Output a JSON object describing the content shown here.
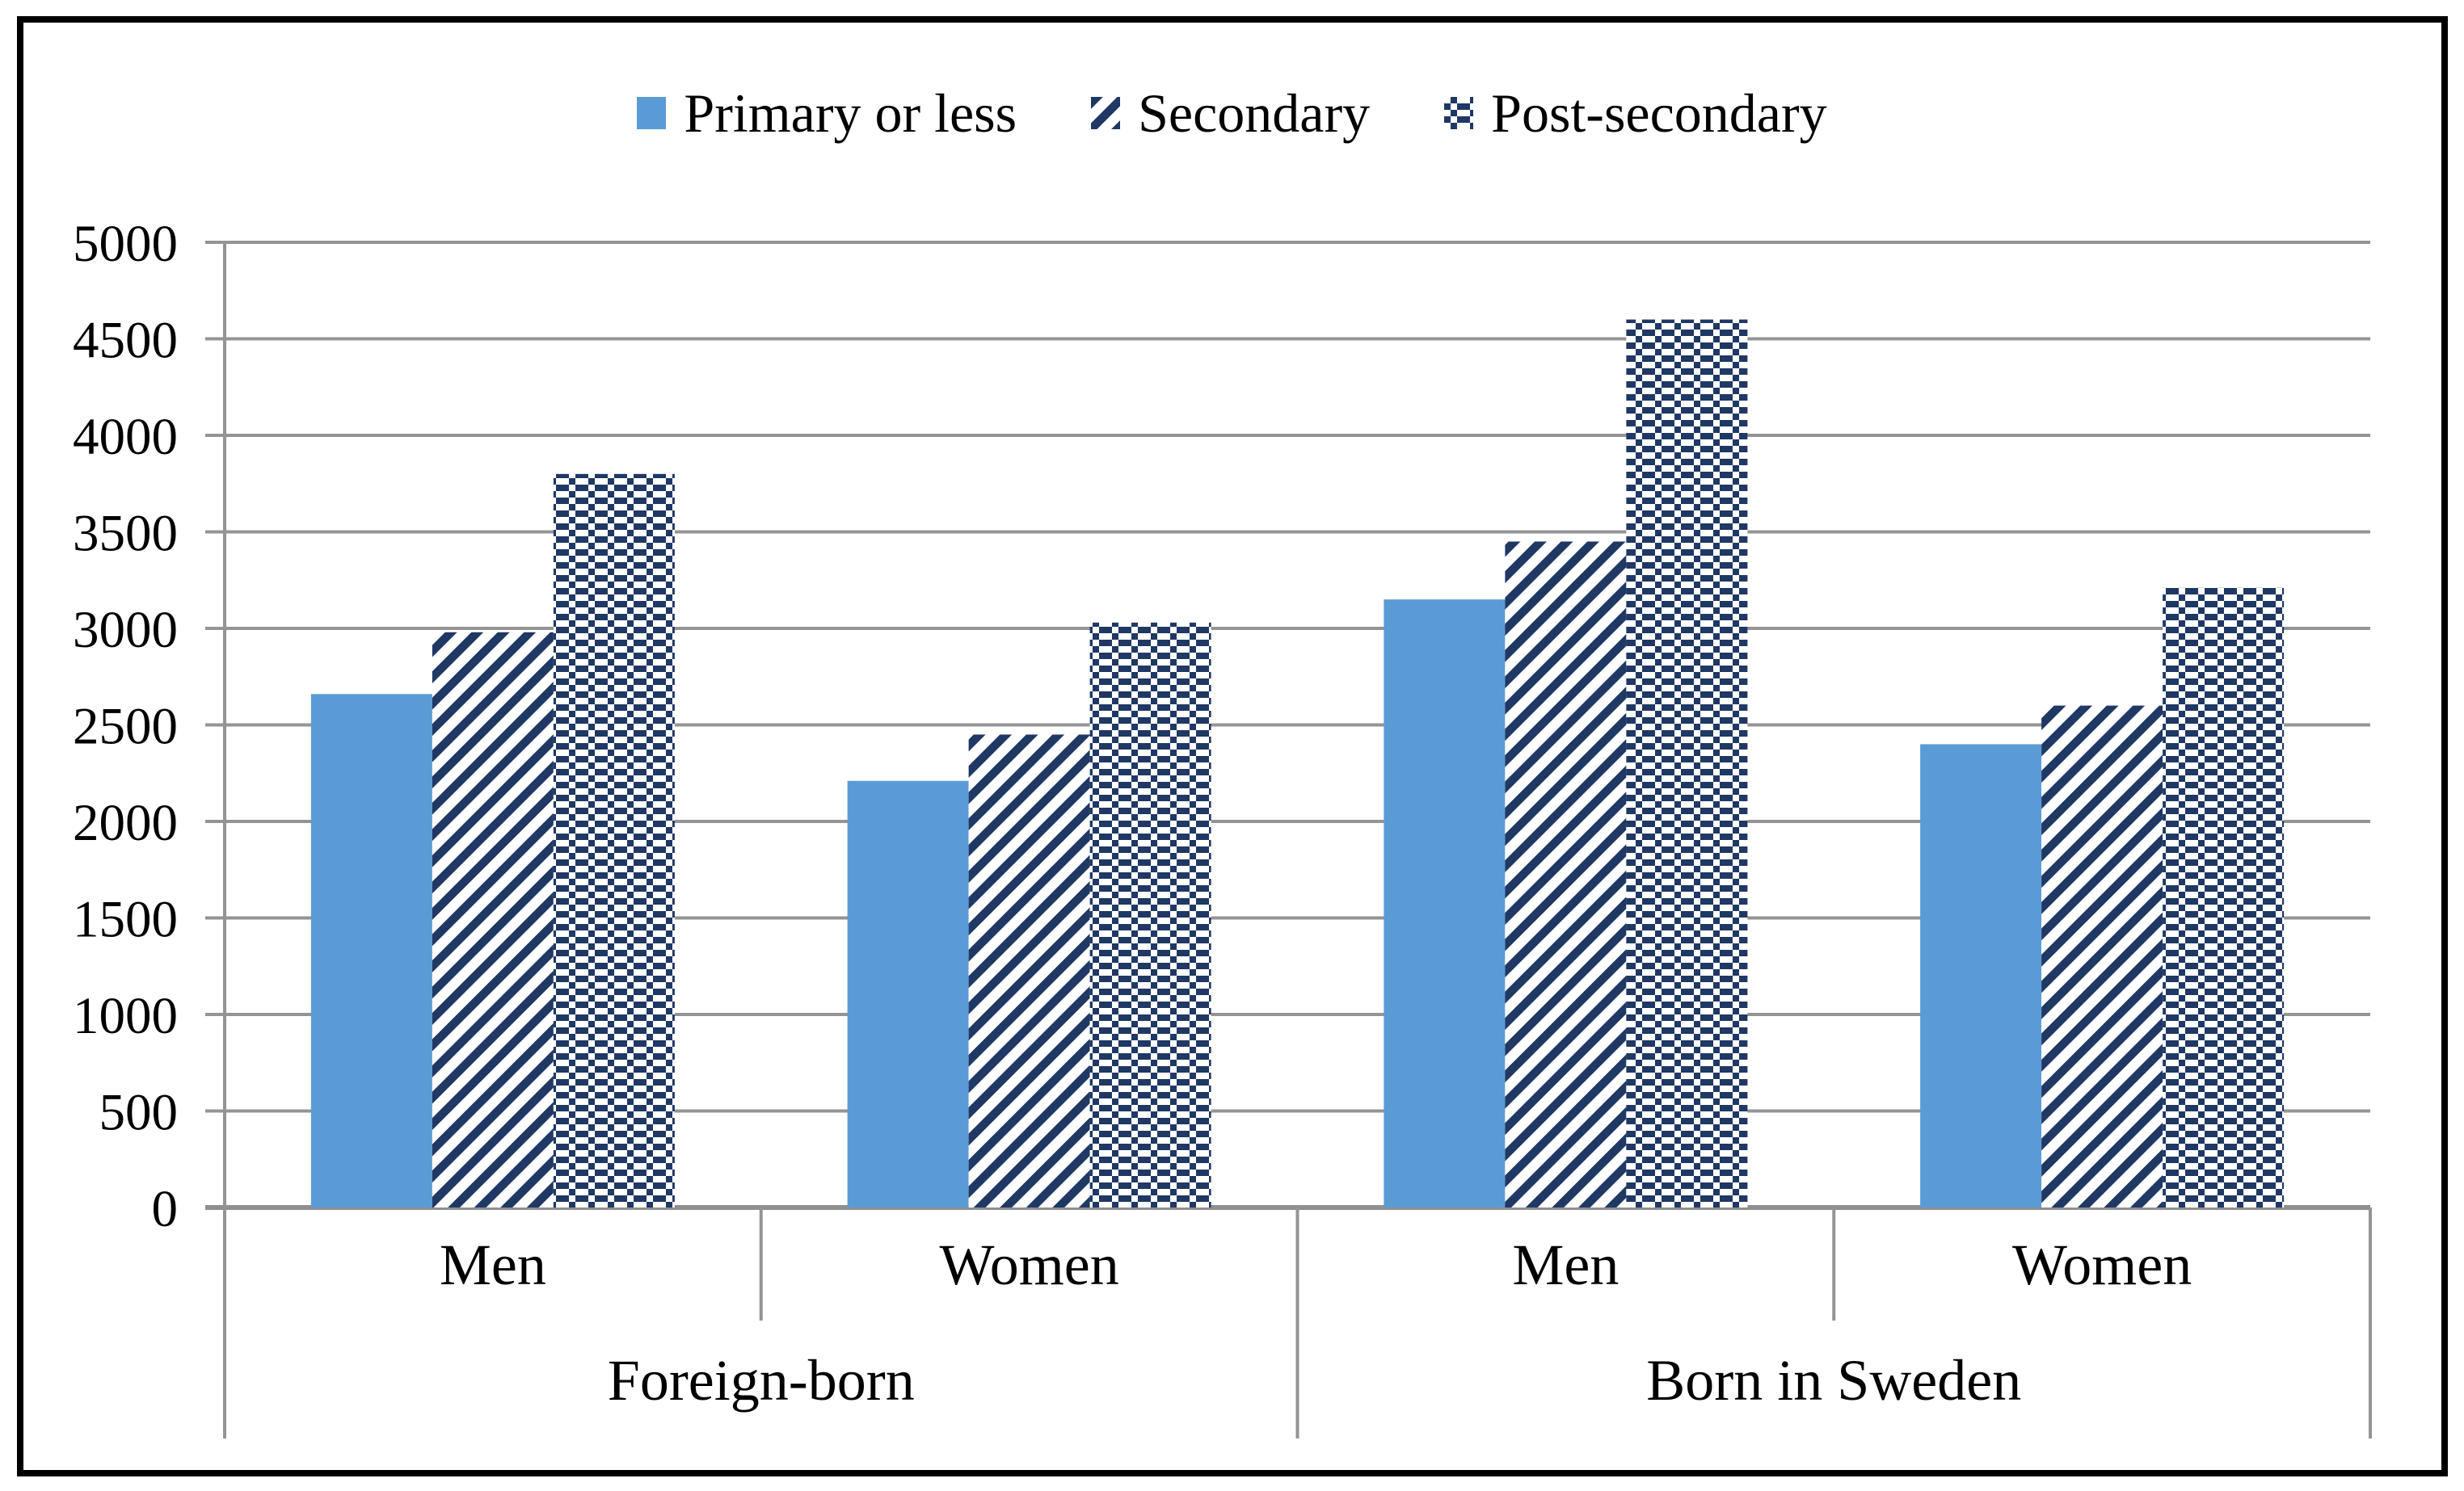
{
  "figure": {
    "background": "#FFFFFF",
    "border_color": "#000000"
  },
  "legend": {
    "position": "top-center",
    "items": [
      {
        "swatch": "solid-square",
        "series_index": 0
      },
      {
        "swatch": "diagonal-stripes-square",
        "series_index": 1
      },
      {
        "swatch": "dotted-lattice-square",
        "series_index": 2
      }
    ]
  },
  "chart_data": {
    "type": "bar",
    "title": "",
    "xlabel": "",
    "ylabel": "",
    "groups": [
      {
        "label": "Foreign-born",
        "categories": [
          "Men",
          "Women"
        ]
      },
      {
        "label": "Born in Sweden",
        "categories": [
          "Men",
          "Women"
        ]
      }
    ],
    "category_order": [
      "Foreign-born / Men",
      "Foreign-born / Women",
      "Born in Sweden / Men",
      "Born in Sweden / Women"
    ],
    "series": [
      {
        "name": "Primary or less",
        "pattern": "solid",
        "values": [
          2660,
          2210,
          3150,
          2400
        ]
      },
      {
        "name": "Secondary",
        "pattern": "diagonal-stripes",
        "values": [
          2980,
          2450,
          3450,
          2600
        ]
      },
      {
        "name": "Post-secondary",
        "pattern": "dotted-lattice",
        "values": [
          3800,
          3030,
          4600,
          3210
        ]
      }
    ],
    "ylim": [
      0,
      5000
    ],
    "ytick_step": 500,
    "ytick_labels": [
      "0",
      "500",
      "1000",
      "1500",
      "2000",
      "2500",
      "3000",
      "3500",
      "4000",
      "4500",
      "5000"
    ],
    "grid": true,
    "legend_position": "top",
    "colors": {
      "solid_bar": "#5B9BD5",
      "pattern_bar": "#1F3864",
      "pattern_background": "#FFFFFF",
      "gridline": "#949494",
      "axis_line": "#8F8F8F",
      "text": "#000000",
      "figure_border": "#000000",
      "background": "#FFFFFF"
    }
  }
}
